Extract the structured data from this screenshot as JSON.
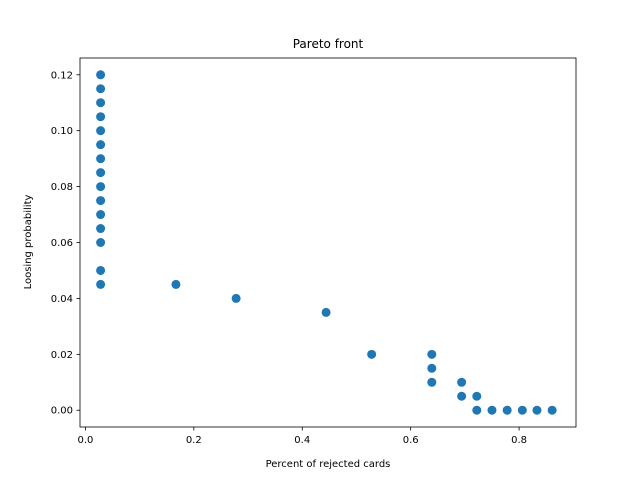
{
  "chart_data": {
    "type": "scatter",
    "title": "Pareto front",
    "xlabel": "Percent of rejected cards",
    "ylabel": "Loosing probability",
    "xlim": [
      -0.01,
      0.905
    ],
    "ylim": [
      -0.006,
      0.126
    ],
    "grid": false,
    "marker_color": "#1f77b4",
    "x_ticks": [
      0.0,
      0.2,
      0.4,
      0.6,
      0.8
    ],
    "x_tick_labels": [
      "0.0",
      "0.2",
      "0.4",
      "0.6",
      "0.8"
    ],
    "y_ticks": [
      0.0,
      0.02,
      0.04,
      0.06,
      0.08,
      0.1,
      0.12
    ],
    "y_tick_labels": [
      "0.00",
      "0.02",
      "0.04",
      "0.06",
      "0.08",
      "0.10",
      "0.12"
    ],
    "points": [
      [
        0.028,
        0.12
      ],
      [
        0.028,
        0.115
      ],
      [
        0.028,
        0.11
      ],
      [
        0.028,
        0.105
      ],
      [
        0.028,
        0.1
      ],
      [
        0.028,
        0.095
      ],
      [
        0.028,
        0.09
      ],
      [
        0.028,
        0.085
      ],
      [
        0.028,
        0.08
      ],
      [
        0.028,
        0.075
      ],
      [
        0.028,
        0.07
      ],
      [
        0.028,
        0.065
      ],
      [
        0.028,
        0.06
      ],
      [
        0.028,
        0.05
      ],
      [
        0.028,
        0.045
      ],
      [
        0.167,
        0.045
      ],
      [
        0.278,
        0.04
      ],
      [
        0.444,
        0.035
      ],
      [
        0.528,
        0.02
      ],
      [
        0.639,
        0.02
      ],
      [
        0.639,
        0.015
      ],
      [
        0.639,
        0.01
      ],
      [
        0.694,
        0.01
      ],
      [
        0.694,
        0.005
      ],
      [
        0.722,
        0.005
      ],
      [
        0.722,
        0.0
      ],
      [
        0.75,
        0.0
      ],
      [
        0.778,
        0.0
      ],
      [
        0.806,
        0.0
      ],
      [
        0.833,
        0.0
      ],
      [
        0.861,
        0.0
      ]
    ]
  }
}
